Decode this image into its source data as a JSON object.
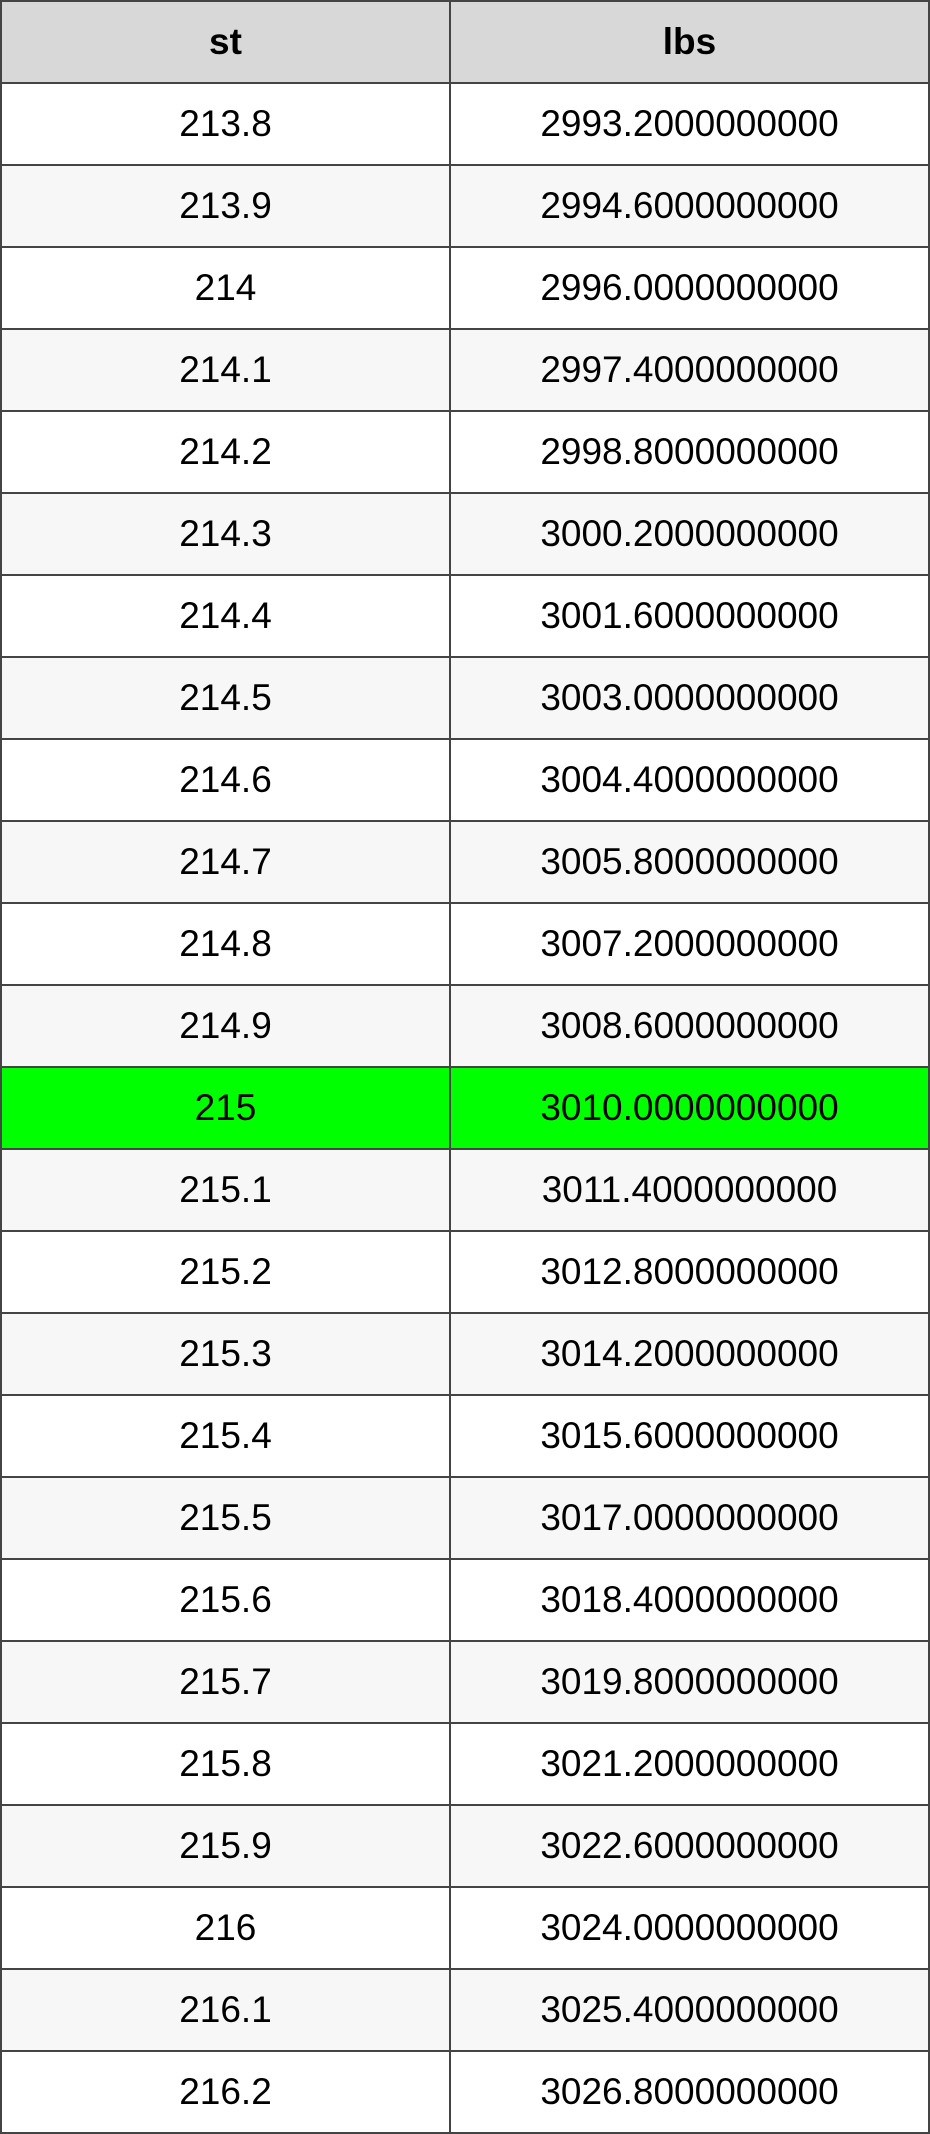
{
  "table": {
    "header": [
      "st",
      "lbs"
    ],
    "rows": [
      [
        "213.8",
        "2993.2000000000"
      ],
      [
        "213.9",
        "2994.6000000000"
      ],
      [
        "214",
        "2996.0000000000"
      ],
      [
        "214.1",
        "2997.4000000000"
      ],
      [
        "214.2",
        "2998.8000000000"
      ],
      [
        "214.3",
        "3000.2000000000"
      ],
      [
        "214.4",
        "3001.6000000000"
      ],
      [
        "214.5",
        "3003.0000000000"
      ],
      [
        "214.6",
        "3004.4000000000"
      ],
      [
        "214.7",
        "3005.8000000000"
      ],
      [
        "214.8",
        "3007.2000000000"
      ],
      [
        "214.9",
        "3008.6000000000"
      ],
      [
        "215",
        "3010.0000000000"
      ],
      [
        "215.1",
        "3011.4000000000"
      ],
      [
        "215.2",
        "3012.8000000000"
      ],
      [
        "215.3",
        "3014.2000000000"
      ],
      [
        "215.4",
        "3015.6000000000"
      ],
      [
        "215.5",
        "3017.0000000000"
      ],
      [
        "215.6",
        "3018.4000000000"
      ],
      [
        "215.7",
        "3019.8000000000"
      ],
      [
        "215.8",
        "3021.2000000000"
      ],
      [
        "215.9",
        "3022.6000000000"
      ],
      [
        "216",
        "3024.0000000000"
      ],
      [
        "216.1",
        "3025.4000000000"
      ],
      [
        "216.2",
        "3026.8000000000"
      ]
    ]
  }
}
